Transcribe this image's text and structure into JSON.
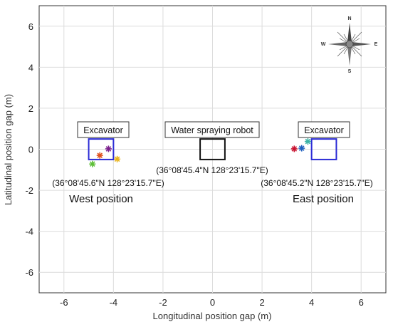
{
  "chart_data": {
    "type": "scatter",
    "xlabel": "Longitudinal position gap (m)",
    "ylabel": "Latitudinal position gap (m)",
    "xlim": [
      -7,
      7
    ],
    "ylim": [
      -7,
      7
    ],
    "xticks": [
      -6,
      -4,
      -2,
      0,
      2,
      4,
      6
    ],
    "yticks": [
      -6,
      -4,
      -2,
      0,
      2,
      4,
      6
    ],
    "grid": true,
    "rectangles": [
      {
        "name": "west-excavator-area",
        "x": [
          -5.0,
          -4.0
        ],
        "y": [
          -0.5,
          0.5
        ],
        "color": "#2b2bd6"
      },
      {
        "name": "robot-area",
        "x": [
          -0.5,
          0.5
        ],
        "y": [
          -0.5,
          0.5
        ],
        "color": "#111111"
      },
      {
        "name": "east-excavator-area",
        "x": [
          4.0,
          5.0
        ],
        "y": [
          -0.5,
          0.5
        ],
        "color": "#2b2bd6"
      }
    ],
    "markers": [
      {
        "x": -4.85,
        "y": -0.72,
        "color": "#5fbf3a"
      },
      {
        "x": -4.55,
        "y": -0.3,
        "color": "#e0521d"
      },
      {
        "x": -4.2,
        "y": 0.02,
        "color": "#7a1f8c"
      },
      {
        "x": -3.85,
        "y": -0.48,
        "color": "#e8b31c"
      },
      {
        "x": 3.3,
        "y": 0.02,
        "color": "#c8102e"
      },
      {
        "x": 3.6,
        "y": 0.05,
        "color": "#1f5fbf"
      },
      {
        "x": 3.85,
        "y": 0.38,
        "color": "#3bb3a6"
      }
    ],
    "annotations": {
      "west_box": "Excavator",
      "center_box": "Water spraying robot",
      "east_box": "Excavator",
      "west_coord": "(36°08'45.6\"N 128°23'15.7\"E)",
      "center_coord": "(36°08'45.4\"N 128°23'15.7\"E)",
      "east_coord": "(36°08'45.2\"N 128°23'15.7\"E)",
      "west_position": "West position",
      "east_position": "East position"
    },
    "compass": {
      "n": "N",
      "s": "S",
      "e": "E",
      "w": "W"
    }
  }
}
